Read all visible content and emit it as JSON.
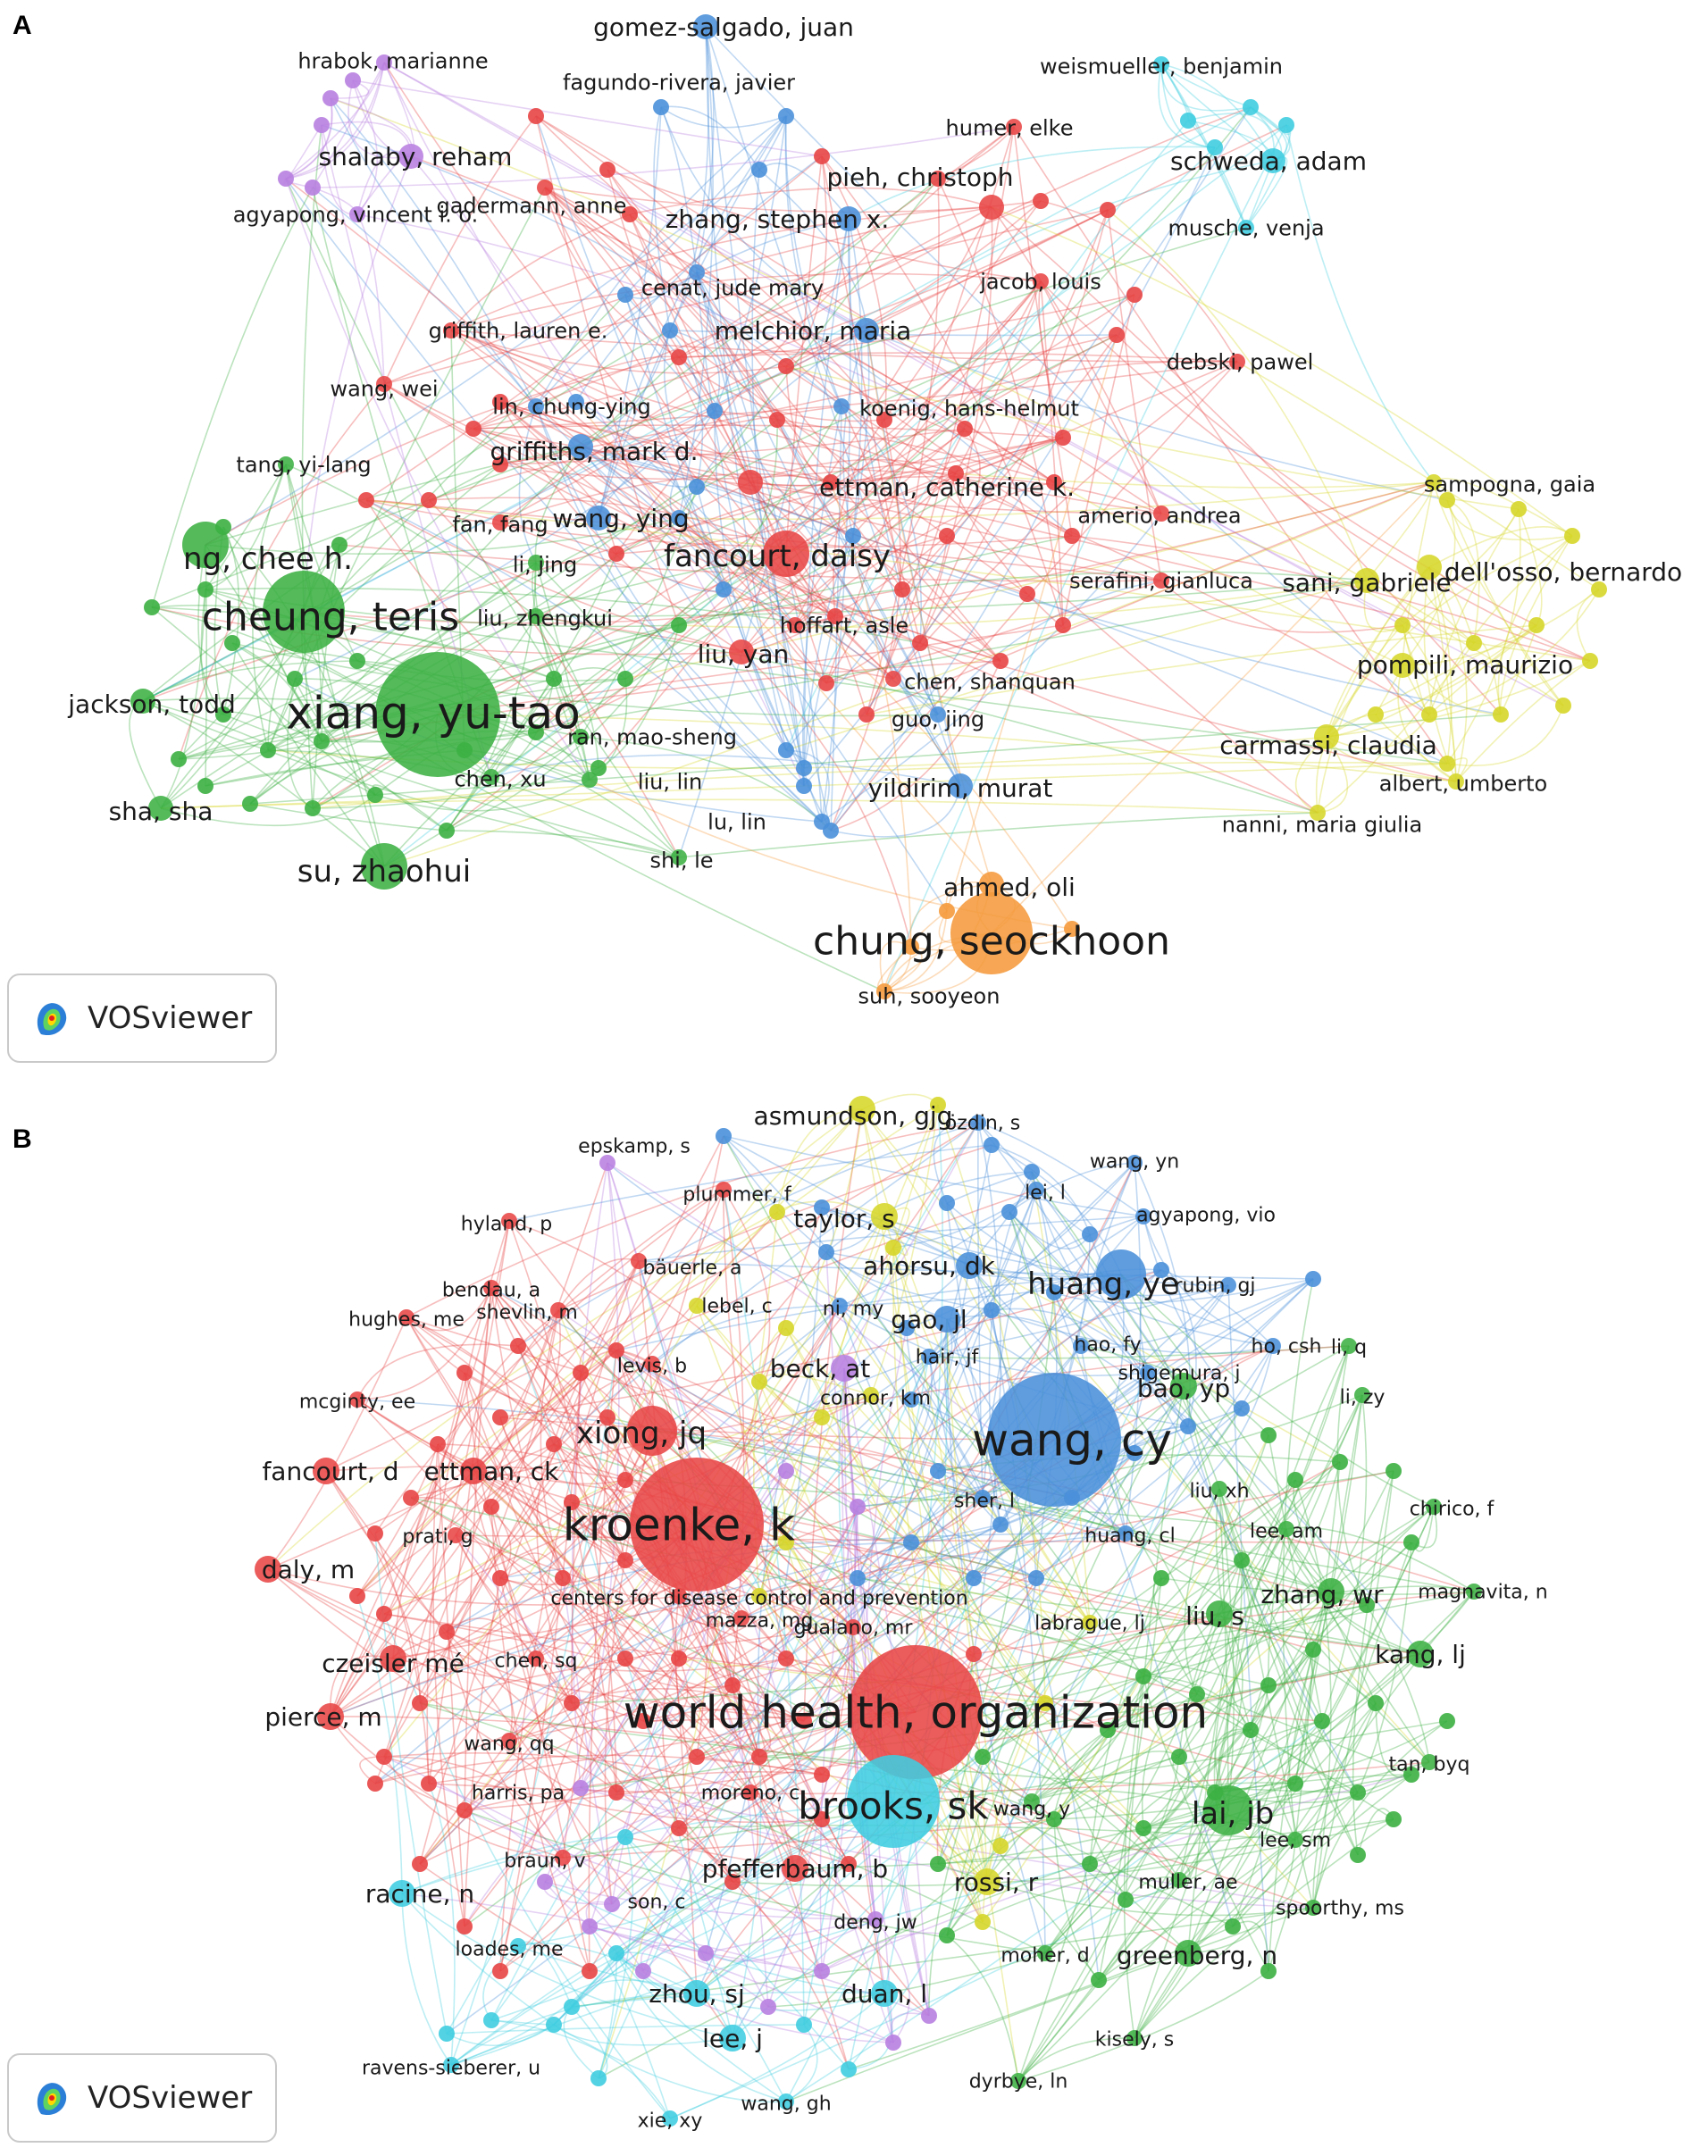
{
  "panel_a": {
    "letter": "A",
    "logo_text": "VOSviewer",
    "cluster_colors": {
      "red": "#e84545",
      "green": "#3cb043",
      "blue": "#4a90d9",
      "yellow": "#d6d62a",
      "purple": "#b87fe0",
      "cyan": "#3fcde0",
      "orange": "#f59a3c"
    },
    "nodes": [
      {
        "label": "gomez-salgado, juan",
        "c": "blue",
        "s": 2
      },
      {
        "label": "fagundo-rivera, javier",
        "c": "blue",
        "s": 1
      },
      {
        "label": "hrabok, marianne",
        "c": "purple",
        "s": 1
      },
      {
        "label": "shalaby, reham",
        "c": "purple",
        "s": 2
      },
      {
        "label": "agyapong, vincent i. o.",
        "c": "purple",
        "s": 1
      },
      {
        "label": "weismueller, benjamin",
        "c": "cyan",
        "s": 1
      },
      {
        "label": "humer, elke",
        "c": "red",
        "s": 1
      },
      {
        "label": "schweda, adam",
        "c": "cyan",
        "s": 2
      },
      {
        "label": "musche, venja",
        "c": "cyan",
        "s": 1
      },
      {
        "label": "pieh, christoph",
        "c": "red",
        "s": 2
      },
      {
        "label": "gadermann, anne",
        "c": "red",
        "s": 1
      },
      {
        "label": "zhang, stephen x.",
        "c": "blue",
        "s": 2
      },
      {
        "label": "cenat, jude mary",
        "c": "blue",
        "s": 1
      },
      {
        "label": "jacob, louis",
        "c": "red",
        "s": 1
      },
      {
        "label": "griffith, lauren e.",
        "c": "red",
        "s": 1
      },
      {
        "label": "melchior, maria",
        "c": "blue",
        "s": 2
      },
      {
        "label": "debski, pawel",
        "c": "red",
        "s": 1
      },
      {
        "label": "wang, wei",
        "c": "red",
        "s": 1
      },
      {
        "label": "lin, chung-ying",
        "c": "blue",
        "s": 1
      },
      {
        "label": "koenig, hans-helmut",
        "c": "blue",
        "s": 1
      },
      {
        "label": "griffiths, mark d.",
        "c": "blue",
        "s": 2
      },
      {
        "label": "tang, yi-lang",
        "c": "green",
        "s": 1
      },
      {
        "label": "ettman, catherine k.",
        "c": "red",
        "s": 2
      },
      {
        "label": "sampogna, gaia",
        "c": "yellow",
        "s": 1
      },
      {
        "label": "fan, fang",
        "c": "red",
        "s": 1
      },
      {
        "label": "wang, ying",
        "c": "blue",
        "s": 2
      },
      {
        "label": "amerio, andrea",
        "c": "red",
        "s": 1
      },
      {
        "label": "ng, chee h.",
        "c": "green",
        "s": 3
      },
      {
        "label": "li, jing",
        "c": "green",
        "s": 1
      },
      {
        "label": "fancourt, daisy",
        "c": "red",
        "s": 3
      },
      {
        "label": "dell'osso, bernardo",
        "c": "yellow",
        "s": 2
      },
      {
        "label": "sani, gabriele",
        "c": "yellow",
        "s": 2
      },
      {
        "label": "cheung, teris",
        "c": "green",
        "s": 4
      },
      {
        "label": "liu, zhengkui",
        "c": "green",
        "s": 1
      },
      {
        "label": "serafini, gianluca",
        "c": "red",
        "s": 1
      },
      {
        "label": "hoffart, asle",
        "c": "red",
        "s": 1
      },
      {
        "label": "liu, yan",
        "c": "red",
        "s": 2
      },
      {
        "label": "pompili, maurizio",
        "c": "yellow",
        "s": 2
      },
      {
        "label": "chen, shanquan",
        "c": "red",
        "s": 1
      },
      {
        "label": "jackson, todd",
        "c": "green",
        "s": 2
      },
      {
        "label": "xiang, yu-tao",
        "c": "green",
        "s": 5
      },
      {
        "label": "guo, jing",
        "c": "blue",
        "s": 1
      },
      {
        "label": "ran, mao-sheng",
        "c": "green",
        "s": 1
      },
      {
        "label": "carmassi, claudia",
        "c": "yellow",
        "s": 2
      },
      {
        "label": "chen, xu",
        "c": "green",
        "s": 1
      },
      {
        "label": "liu, lin",
        "c": "green",
        "s": 1
      },
      {
        "label": "albert, umberto",
        "c": "yellow",
        "s": 1
      },
      {
        "label": "yildirim, murat",
        "c": "blue",
        "s": 2
      },
      {
        "label": "sha, sha",
        "c": "green",
        "s": 2
      },
      {
        "label": "lu, lin",
        "c": "blue",
        "s": 1
      },
      {
        "label": "nanni, maria giulia",
        "c": "yellow",
        "s": 1
      },
      {
        "label": "shi, le",
        "c": "green",
        "s": 1
      },
      {
        "label": "su, zhaohui",
        "c": "green",
        "s": 3
      },
      {
        "label": "ahmed, oli",
        "c": "orange",
        "s": 2
      },
      {
        "label": "chung, seockhoon",
        "c": "orange",
        "s": 4
      },
      {
        "label": "suh, sooyeon",
        "c": "orange",
        "s": 1
      }
    ]
  },
  "panel_b": {
    "letter": "B",
    "logo_text": "VOSviewer",
    "nodes": [
      {
        "label": "asmundson, gjg",
        "c": "yellow",
        "s": 2
      },
      {
        "label": "özdin, s",
        "c": "blue",
        "s": 1
      },
      {
        "label": "epskamp, s",
        "c": "purple",
        "s": 1
      },
      {
        "label": "wang, yn",
        "c": "blue",
        "s": 1
      },
      {
        "label": "plummer, f",
        "c": "red",
        "s": 1
      },
      {
        "label": "taylor, s",
        "c": "yellow",
        "s": 2
      },
      {
        "label": "lei, l",
        "c": "blue",
        "s": 1
      },
      {
        "label": "hyland, p",
        "c": "red",
        "s": 1
      },
      {
        "label": "agyapong, vio",
        "c": "blue",
        "s": 1
      },
      {
        "label": "bäuerle, a",
        "c": "red",
        "s": 1
      },
      {
        "label": "ahorsu, dk",
        "c": "blue",
        "s": 2
      },
      {
        "label": "bendau, a",
        "c": "red",
        "s": 1
      },
      {
        "label": "huang, ye",
        "c": "blue",
        "s": 3
      },
      {
        "label": "rubin, gj",
        "c": "blue",
        "s": 1
      },
      {
        "label": "lebel, c",
        "c": "yellow",
        "s": 1
      },
      {
        "label": "hughes, me",
        "c": "red",
        "s": 1
      },
      {
        "label": "shevlin, m",
        "c": "red",
        "s": 1
      },
      {
        "label": "ni, my",
        "c": "blue",
        "s": 1
      },
      {
        "label": "gao, jl",
        "c": "blue",
        "s": 2
      },
      {
        "label": "hao, fy",
        "c": "blue",
        "s": 1
      },
      {
        "label": "ho, csh",
        "c": "blue",
        "s": 1
      },
      {
        "label": "li, q",
        "c": "green",
        "s": 1
      },
      {
        "label": "hair, jf",
        "c": "blue",
        "s": 1
      },
      {
        "label": "levis, b",
        "c": "red",
        "s": 1
      },
      {
        "label": "beck, at",
        "c": "purple",
        "s": 2
      },
      {
        "label": "shigemura, j",
        "c": "blue",
        "s": 1
      },
      {
        "label": "mcginty, ee",
        "c": "red",
        "s": 1
      },
      {
        "label": "connor, km",
        "c": "yellow",
        "s": 1
      },
      {
        "label": "bao, yp",
        "c": "green",
        "s": 2
      },
      {
        "label": "li, zy",
        "c": "green",
        "s": 1
      },
      {
        "label": "wang, cy",
        "c": "blue",
        "s": 5
      },
      {
        "label": "xiong, jq",
        "c": "red",
        "s": 3
      },
      {
        "label": "fancourt, d",
        "c": "red",
        "s": 2
      },
      {
        "label": "ettman, ck",
        "c": "red",
        "s": 2
      },
      {
        "label": "liu, xh",
        "c": "green",
        "s": 1
      },
      {
        "label": "chirico, f",
        "c": "green",
        "s": 1
      },
      {
        "label": "sher, l",
        "c": "blue",
        "s": 1
      },
      {
        "label": "kroenke, k",
        "c": "red",
        "s": 5
      },
      {
        "label": "prati, g",
        "c": "red",
        "s": 1
      },
      {
        "label": "lee, am",
        "c": "green",
        "s": 1
      },
      {
        "label": "huang, cl",
        "c": "blue",
        "s": 1
      },
      {
        "label": "daly, m",
        "c": "red",
        "s": 2
      },
      {
        "label": "centers for disease control and prevention",
        "c": "yellow",
        "s": 1
      },
      {
        "label": "zhang, wr",
        "c": "green",
        "s": 2
      },
      {
        "label": "magnavita, n",
        "c": "green",
        "s": 1
      },
      {
        "label": "mazza, mg",
        "c": "red",
        "s": 1
      },
      {
        "label": "labrague, lj",
        "c": "yellow",
        "s": 1
      },
      {
        "label": "liu, s",
        "c": "green",
        "s": 2
      },
      {
        "label": "czeisler mé",
        "c": "red",
        "s": 2
      },
      {
        "label": "gualano, mr",
        "c": "red",
        "s": 1
      },
      {
        "label": "chen, sq",
        "c": "red",
        "s": 1
      },
      {
        "label": "kang, lj",
        "c": "green",
        "s": 2
      },
      {
        "label": "world health, organization",
        "c": "red",
        "s": 5
      },
      {
        "label": "pierce, m",
        "c": "red",
        "s": 2
      },
      {
        "label": "wang, qq",
        "c": "red",
        "s": 1
      },
      {
        "label": "tan, byq",
        "c": "green",
        "s": 1
      },
      {
        "label": "harris, pa",
        "c": "purple",
        "s": 1
      },
      {
        "label": "moreno, c",
        "c": "red",
        "s": 1
      },
      {
        "label": "wang, y",
        "c": "green",
        "s": 1
      },
      {
        "label": "brooks, sk",
        "c": "cyan",
        "s": 4
      },
      {
        "label": "lai, jb",
        "c": "green",
        "s": 3
      },
      {
        "label": "lee, sm",
        "c": "green",
        "s": 1
      },
      {
        "label": "braun, v",
        "c": "red",
        "s": 1
      },
      {
        "label": "pfefferbaum, b",
        "c": "red",
        "s": 2
      },
      {
        "label": "racine, n",
        "c": "cyan",
        "s": 2
      },
      {
        "label": "rossi, r",
        "c": "yellow",
        "s": 2
      },
      {
        "label": "muller, ae",
        "c": "green",
        "s": 1
      },
      {
        "label": "son, c",
        "c": "purple",
        "s": 1
      },
      {
        "label": "spoorthy, ms",
        "c": "green",
        "s": 1
      },
      {
        "label": "deng, jw",
        "c": "purple",
        "s": 1
      },
      {
        "label": "loades, me",
        "c": "cyan",
        "s": 1
      },
      {
        "label": "moher, d",
        "c": "green",
        "s": 1
      },
      {
        "label": "greenberg, n",
        "c": "green",
        "s": 2
      },
      {
        "label": "zhou, sj",
        "c": "cyan",
        "s": 2
      },
      {
        "label": "duan, l",
        "c": "cyan",
        "s": 2
      },
      {
        "label": "lee, j",
        "c": "cyan",
        "s": 2
      },
      {
        "label": "kisely, s",
        "c": "green",
        "s": 1
      },
      {
        "label": "ravens-sieberer, u",
        "c": "cyan",
        "s": 1
      },
      {
        "label": "dyrbye, ln",
        "c": "green",
        "s": 1
      },
      {
        "label": "wang, gh",
        "c": "cyan",
        "s": 1
      },
      {
        "label": "xie, xy",
        "c": "cyan",
        "s": 1
      }
    ]
  }
}
